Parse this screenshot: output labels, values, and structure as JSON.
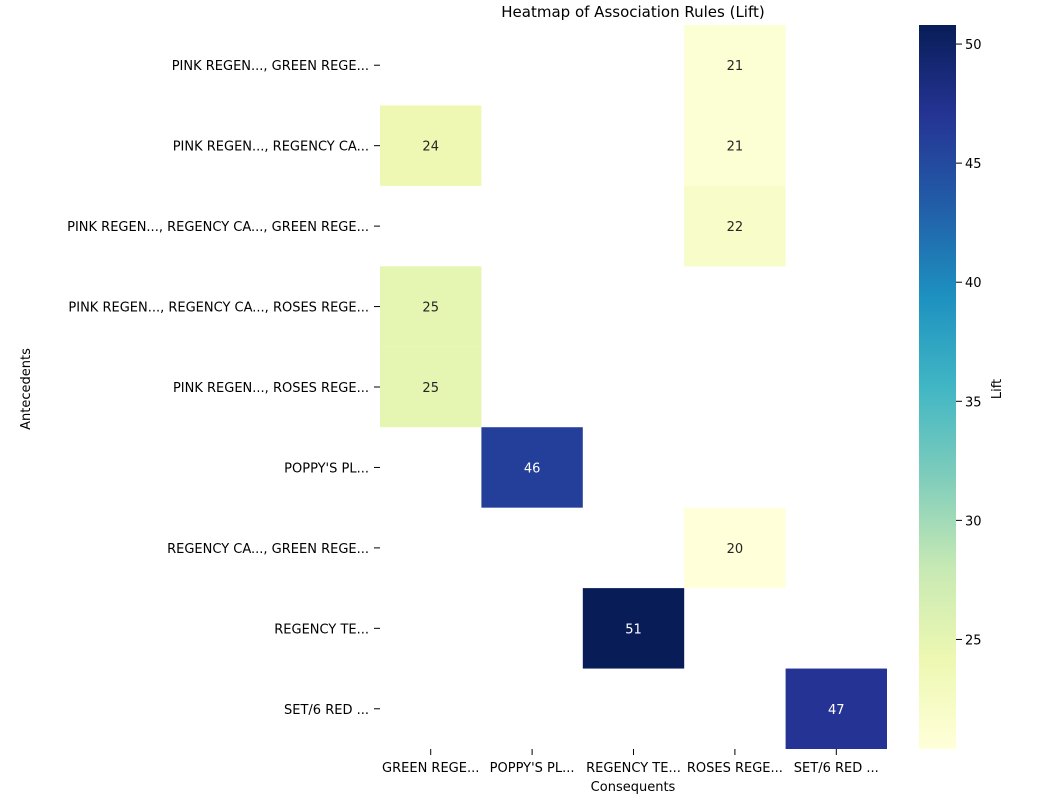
{
  "chart_data": {
    "type": "heatmap",
    "title": "Heatmap of Association Rules (Lift)",
    "xlabel": "Consequents",
    "ylabel": "Antecedents",
    "x_categories": [
      "GREEN REGE...",
      "POPPY'S PL...",
      "REGENCY TE...",
      "ROSES REGE...",
      "SET/6 RED ..."
    ],
    "y_categories": [
      "PINK REGEN..., GREEN REGE...",
      "PINK REGEN..., REGENCY CA...",
      "PINK REGEN..., REGENCY CA..., GREEN REGE...",
      "PINK REGEN..., REGENCY CA..., ROSES REGE...",
      "PINK REGEN..., ROSES REGE...",
      "POPPY'S PL...",
      "REGENCY CA..., GREEN REGE...",
      "REGENCY TE...",
      "SET/6 RED ..."
    ],
    "values": [
      [
        null,
        null,
        null,
        21,
        null
      ],
      [
        24,
        null,
        null,
        21,
        null
      ],
      [
        null,
        null,
        null,
        22,
        null
      ],
      [
        25,
        null,
        null,
        null,
        null
      ],
      [
        25,
        null,
        null,
        null,
        null
      ],
      [
        null,
        46,
        null,
        null,
        null
      ],
      [
        null,
        null,
        null,
        20,
        null
      ],
      [
        null,
        null,
        51,
        null,
        null
      ],
      [
        null,
        null,
        null,
        null,
        47
      ]
    ],
    "colorbar": {
      "label": "Lift",
      "ticks": [
        25,
        30,
        35,
        40,
        45,
        50
      ],
      "range": [
        20.4,
        50.8
      ],
      "colormap": "YlGnBu"
    },
    "grid": false
  }
}
